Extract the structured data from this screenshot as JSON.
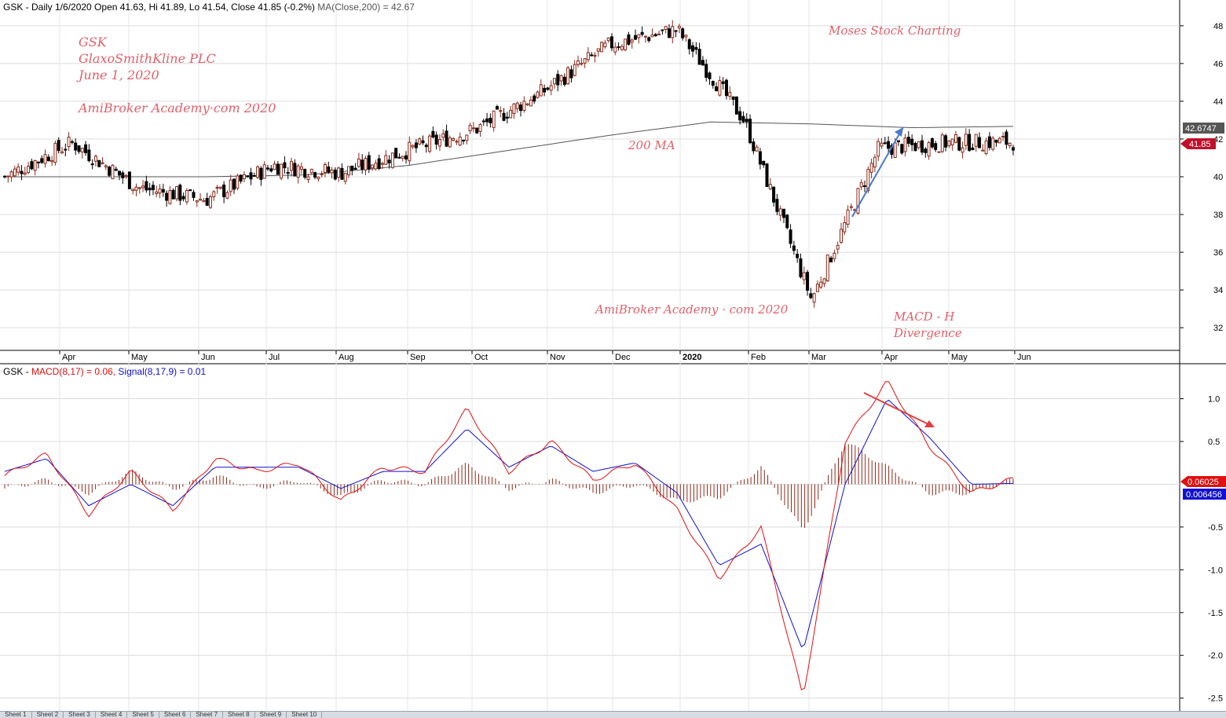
{
  "price_panel": {
    "header": {
      "prefix": "GSK - Daily 1/6/2020 Open 41.63, Hi 41.89, Lo 41.54, Close 41.85 (-0.2%)",
      "ma_label": "MA(Close,200) = 42.67"
    },
    "annotations": {
      "ticker": "GSK",
      "company": "GlaxoSmithKline PLC",
      "date": "June 1, 2020",
      "site_top": "AmiBroker Academy·com   2020",
      "brand": "Moses Stock Charting",
      "ma_note": "200 MA",
      "site_bottom": "AmiBroker Academy · com   2020",
      "macd_note": "MACD - H",
      "divergence_note": "Divergence"
    },
    "price_badge": "41.85",
    "ma_badge": "42.6747",
    "colors": {
      "up": "#8b2a1a",
      "down": "#000000",
      "ma": "#555555",
      "badge_price": "#c0102a",
      "badge_ma": "#555555",
      "arrow": "#4a78c8"
    }
  },
  "macd_panel": {
    "header": {
      "prefix": "GSK - ",
      "macd_label": "MACD(8,17) = 0.06,",
      "signal_label": "Signal(8,17,9) = 0.01"
    },
    "macd_badge": "0.06025",
    "signal_badge": "0.006456",
    "colors": {
      "macd": "#e01010",
      "signal": "#1010d0",
      "hist": "#8b2a1a",
      "arrow": "#e04040"
    }
  },
  "sheet_tabs": [
    "Sheet 1",
    "Sheet 2",
    "Sheet 3",
    "Sheet 4",
    "Sheet 5",
    "Sheet 6",
    "Sheet 7",
    "Sheet 8",
    "Sheet 9",
    "Sheet 10"
  ],
  "chart_data": [
    {
      "type": "candlestick",
      "title": "GSK - Daily",
      "x_labels": [
        "Apr",
        "May",
        "Jun",
        "Jul",
        "Aug",
        "Sep",
        "Oct",
        "Nov",
        "Dec",
        "2020",
        "Feb",
        "Mar",
        "Apr",
        "May",
        "Jun"
      ],
      "y_ticks": [
        32,
        34,
        36,
        38,
        40,
        42,
        44,
        46,
        48
      ],
      "ylim": [
        30.8,
        49.2
      ],
      "grid": true,
      "close_path": [
        {
          "month": "Mar-2019",
          "close": 40.0
        },
        {
          "month": "Apr-2019",
          "close": 41.8
        },
        {
          "month": "May-2019",
          "close": 39.4
        },
        {
          "month": "Jun-2019",
          "close": 38.8
        },
        {
          "month": "Jul-2019",
          "close": 40.6
        },
        {
          "month": "Aug-2019",
          "close": 40.2
        },
        {
          "month": "Sep-2019",
          "close": 41.4
        },
        {
          "month": "Oct-2019",
          "close": 42.5
        },
        {
          "month": "Nov-2019",
          "close": 44.5
        },
        {
          "month": "Dec-2019",
          "close": 47.0
        },
        {
          "month": "Jan-2020",
          "close": 47.8
        },
        {
          "month": "Feb-2020",
          "close": 43.0
        },
        {
          "month": "Mar-2020",
          "close": 33.5
        },
        {
          "month": "Apr-2020",
          "close": 41.5
        },
        {
          "month": "May-2020",
          "close": 41.8
        },
        {
          "month": "Jun-2020",
          "close": 41.85
        }
      ],
      "ma200": [
        40.0,
        40.0,
        40.0,
        40.1,
        40.6,
        41.4,
        42.2,
        42.9,
        42.8,
        42.6,
        42.67
      ],
      "last": {
        "open": 41.63,
        "high": 41.89,
        "low": 41.54,
        "close": 41.85,
        "change_pct": -0.2,
        "ma200": 42.67
      }
    },
    {
      "type": "line",
      "title": "MACD(8,17)",
      "y_ticks": [
        1.0,
        0.5,
        -0.5,
        -1.0,
        -1.5,
        -2.0,
        -2.5
      ],
      "ylim": [
        -2.65,
        1.4
      ],
      "series": [
        {
          "name": "MACD(8,17)",
          "values": [
            0.1,
            0.35,
            -0.35,
            0.15,
            -0.3,
            0.3,
            0.15,
            0.25,
            -0.2,
            0.2,
            0.15,
            0.88,
            0.15,
            0.5,
            0.05,
            0.25,
            -0.3,
            -1.1,
            -0.5,
            -2.5,
            0.5,
            1.2,
            0.45,
            -0.1,
            0.06
          ]
        },
        {
          "name": "Signal(8,17,9)",
          "values": [
            0.15,
            0.3,
            -0.25,
            0.0,
            -0.25,
            0.2,
            0.2,
            0.2,
            -0.05,
            0.15,
            0.15,
            0.65,
            0.2,
            0.45,
            0.15,
            0.25,
            -0.1,
            -0.95,
            -0.7,
            -1.95,
            0.0,
            1.0,
            0.55,
            0.0,
            0.01
          ]
        }
      ],
      "last": {
        "macd": 0.06,
        "signal": 0.01
      }
    }
  ]
}
